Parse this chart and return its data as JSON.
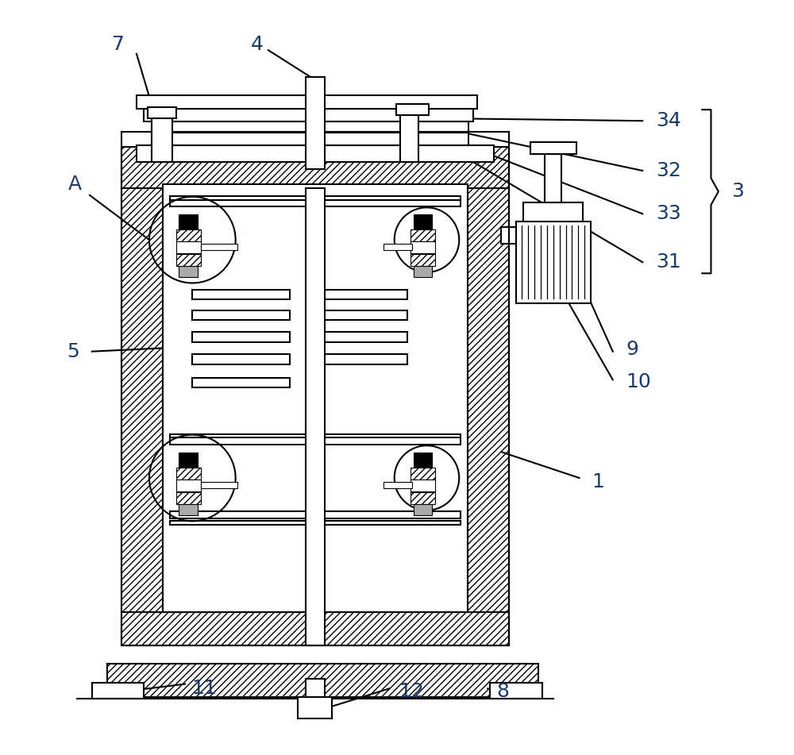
{
  "bg_color": "#ffffff",
  "line_color": "#000000",
  "label_fontsize": 18,
  "line_width": 1.5
}
